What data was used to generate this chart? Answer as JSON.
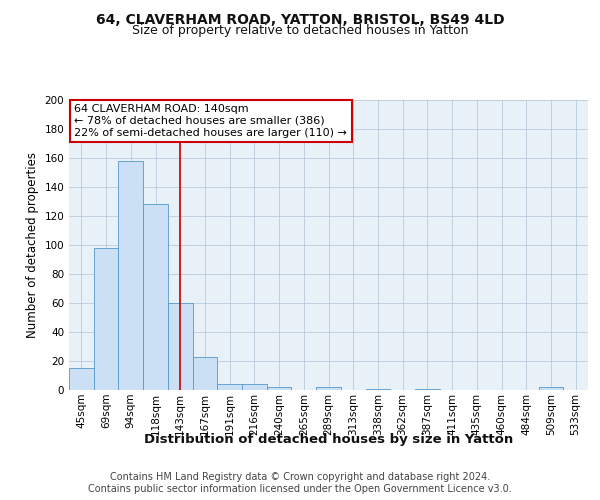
{
  "title1": "64, CLAVERHAM ROAD, YATTON, BRISTOL, BS49 4LD",
  "title2": "Size of property relative to detached houses in Yatton",
  "xlabel": "Distribution of detached houses by size in Yatton",
  "ylabel": "Number of detached properties",
  "categories": [
    "45sqm",
    "69sqm",
    "94sqm",
    "118sqm",
    "143sqm",
    "167sqm",
    "191sqm",
    "216sqm",
    "240sqm",
    "265sqm",
    "289sqm",
    "313sqm",
    "338sqm",
    "362sqm",
    "387sqm",
    "411sqm",
    "435sqm",
    "460sqm",
    "484sqm",
    "509sqm",
    "533sqm"
  ],
  "values": [
    15,
    98,
    158,
    128,
    60,
    23,
    4,
    4,
    2,
    0,
    2,
    0,
    1,
    0,
    1,
    0,
    0,
    0,
    0,
    2,
    0
  ],
  "bar_color": "#cce0f5",
  "bar_edge_color": "#5599cc",
  "red_line_index": 4,
  "ylim": [
    0,
    200
  ],
  "yticks": [
    0,
    20,
    40,
    60,
    80,
    100,
    120,
    140,
    160,
    180,
    200
  ],
  "annotation_title": "64 CLAVERHAM ROAD: 140sqm",
  "annotation_line1": "← 78% of detached houses are smaller (386)",
  "annotation_line2": "22% of semi-detached houses are larger (110) →",
  "annotation_box_color": "#ffffff",
  "annotation_box_edge_color": "#cc0000",
  "footer1": "Contains HM Land Registry data © Crown copyright and database right 2024.",
  "footer2": "Contains public sector information licensed under the Open Government Licence v3.0.",
  "background_color": "#e8f0f8",
  "fig_bg_color": "#ffffff",
  "title1_fontsize": 10,
  "title2_fontsize": 9,
  "xlabel_fontsize": 9.5,
  "ylabel_fontsize": 8.5,
  "tick_fontsize": 7.5,
  "footer_fontsize": 7,
  "annotation_fontsize": 8
}
